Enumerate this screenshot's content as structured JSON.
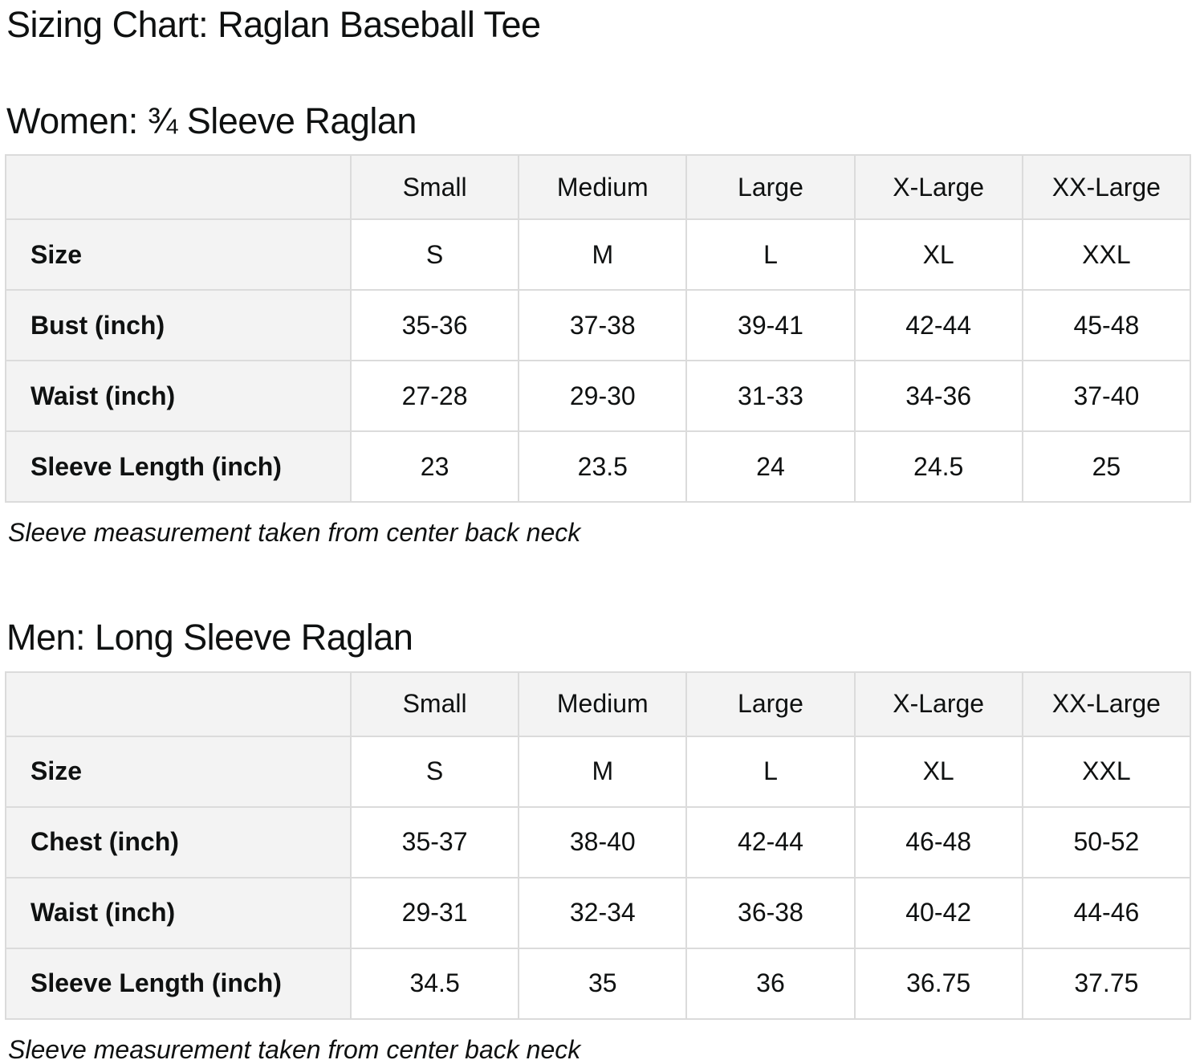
{
  "page_title": "Sizing Chart: Raglan Baseball Tee",
  "colors": {
    "header_cell_bg": "#f3f3f3",
    "border": "#dbdbdb",
    "text": "#0f1111",
    "background": "#ffffff"
  },
  "sections": [
    {
      "title": "Women: ¾ Sleeve Raglan",
      "note": "Sleeve measurement taken from center back neck",
      "table": {
        "column_headers": [
          "",
          "Small",
          "Medium",
          "Large",
          "X-Large",
          "XX-Large"
        ],
        "rows": [
          {
            "label": "Size",
            "values": [
              "S",
              "M",
              "L",
              "XL",
              "XXL"
            ]
          },
          {
            "label": "Bust (inch)",
            "values": [
              "35-36",
              "37-38",
              "39-41",
              "42-44",
              "45-48"
            ]
          },
          {
            "label": "Waist (inch)",
            "values": [
              "27-28",
              "29-30",
              "31-33",
              "34-36",
              "37-40"
            ]
          },
          {
            "label": "Sleeve Length (inch)",
            "values": [
              "23",
              "23.5",
              "24",
              "24.5",
              "25"
            ]
          }
        ]
      }
    },
    {
      "title": "Men: Long Sleeve Raglan",
      "note": "Sleeve measurement taken from center back neck",
      "table": {
        "column_headers": [
          "",
          "Small",
          "Medium",
          "Large",
          "X-Large",
          "XX-Large"
        ],
        "rows": [
          {
            "label": "Size",
            "values": [
              "S",
              "M",
              "L",
              "XL",
              "XXL"
            ]
          },
          {
            "label": "Chest (inch)",
            "values": [
              "35-37",
              "38-40",
              "42-44",
              "46-48",
              "50-52"
            ]
          },
          {
            "label": "Waist (inch)",
            "values": [
              "29-31",
              "32-34",
              "36-38",
              "40-42",
              "44-46"
            ]
          },
          {
            "label": "Sleeve Length (inch)",
            "values": [
              "34.5",
              "35",
              "36",
              "36.75",
              "37.75"
            ]
          }
        ]
      }
    }
  ]
}
